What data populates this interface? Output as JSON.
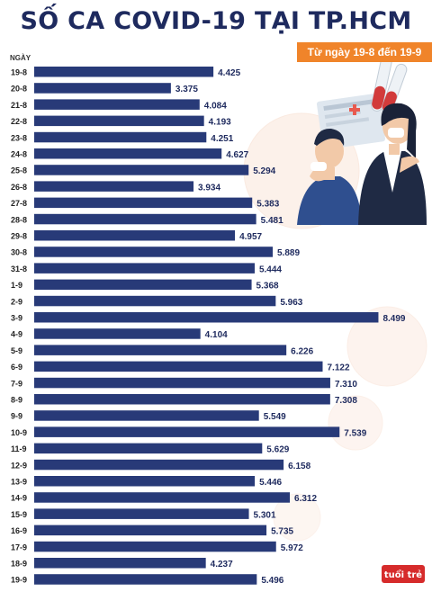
{
  "header": {
    "title": "SỐ CA COVID-19 TẠI TP.HCM",
    "subtitle": "Từ ngày 19-8 đến 19-9",
    "axis_label": "NGÀY"
  },
  "logo": {
    "text": "tuổi trẻ"
  },
  "colors": {
    "bar": "#283a78",
    "title": "#1e2a5e",
    "label": "#1e2a5e",
    "subtitle_bg": "#f0842a",
    "watermark": "#f7dccd"
  },
  "chart_data": {
    "type": "bar",
    "orientation": "horizontal",
    "categories": [
      "19-8",
      "20-8",
      "21-8",
      "22-8",
      "23-8",
      "24-8",
      "25-8",
      "26-8",
      "27-8",
      "28-8",
      "29-8",
      "30-8",
      "31-8",
      "1-9",
      "2-9",
      "3-9",
      "4-9",
      "5-9",
      "6-9",
      "7-9",
      "8-9",
      "9-9",
      "10-9",
      "11-9",
      "12-9",
      "13-9",
      "14-9",
      "15-9",
      "16-9",
      "17-9",
      "18-9",
      "19-9"
    ],
    "values": [
      4425,
      3375,
      4084,
      4193,
      4251,
      4627,
      5294,
      3934,
      5383,
      5481,
      4957,
      5889,
      5444,
      5368,
      5963,
      8499,
      4104,
      6226,
      7122,
      7310,
      7308,
      5549,
      7539,
      5629,
      6158,
      5446,
      6312,
      5301,
      5735,
      5972,
      4237,
      5496
    ],
    "value_labels": [
      "4.425",
      "3.375",
      "4.084",
      "4.193",
      "4.251",
      "4.627",
      "5.294",
      "3.934",
      "5.383",
      "5.481",
      "4.957",
      "5.889",
      "5.444",
      "5.368",
      "5.963",
      "8.499",
      "4.104",
      "6.226",
      "7.122",
      "7.310",
      "7.308",
      "5.549",
      "7.539",
      "5.629",
      "6.158",
      "5.446",
      "6.312",
      "5.301",
      "5.735",
      "5.972",
      "4.237",
      "5.496"
    ],
    "title": "SỐ CA COVID-19 TẠI TP.HCM",
    "subtitle": "Từ ngày 19-8 đến 19-9",
    "ylabel": "NGÀY",
    "xlim": [
      0,
      10000
    ],
    "grid": false,
    "legend": "none"
  }
}
